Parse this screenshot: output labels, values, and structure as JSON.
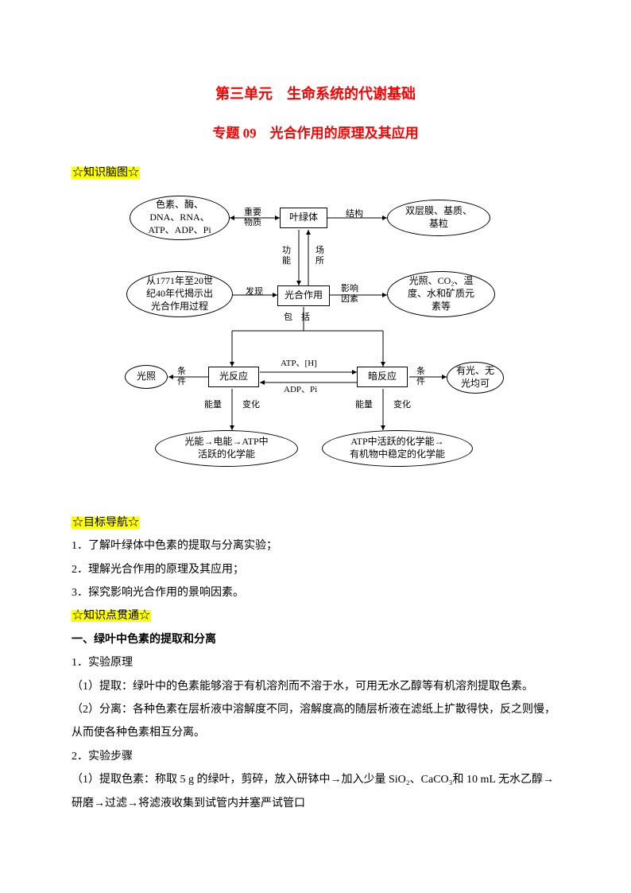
{
  "title_unit": "第三单元　生命系统的代谢基础",
  "title_topic": "专题 09　光合作用的原理及其应用",
  "section_brainmap": "☆知识脑图☆",
  "section_objectives": "☆目标导航☆",
  "section_knowledge": "☆知识点贯通☆",
  "objectives": {
    "o1": "1．了解叶绿体中色素的提取与分离实验；",
    "o2": "2．理解光合作用的原理及其应用；",
    "o3": "3．探究影响光合作用的景响因素。"
  },
  "knowledge": {
    "h1": "一、绿叶中色素的提取和分离",
    "k1": "1．实验原理",
    "k1a": "（1）提取：绿叶中的色素能够溶于有机溶剂而不溶于水，可用无水乙醇等有机溶剂提取色素。",
    "k1b": "（2）分离：各种色素在层析液中溶解度不同，溶解度高的随层析液在滤纸上扩散得快，反之则慢，从而使各种色素相互分离。",
    "k2": "2．实验步骤",
    "k2a": "（1）提取色素：称取 5 g 的绿叶，剪碎，放入研钵中→加入少量 SiO₂、CaCO₃和 10 mL 无水乙醇→研磨→过滤→将滤液收集到试管内并塞严试管口"
  },
  "diagram": {
    "type": "flowchart",
    "nodes": {
      "pigments": "色素、酶、\nDNA、RNA、\nATP、ADP、Pi",
      "chloroplast": "叶绿体",
      "membrane": "双层膜、基质、\n基粒",
      "discovery": "从1771年至20世\n纪40年代揭示出\n光合作用过程",
      "photosynthesis": "光合作用",
      "factors": "光照、CO₂、温\n度、水和矿质元\n素等",
      "light": "光照",
      "light_reaction": "光反应",
      "dark_reaction": "暗反应",
      "dark_cond": "有光、无\n光均可",
      "light_energy": "光能→电能→ATP中\n活跃的化学能",
      "dark_energy": "ATP中活跃的化学能→\n有机物中稳定的化学能"
    },
    "edge_labels": {
      "important": "重要\n物质",
      "structure": "结构",
      "function_place": "功\n能",
      "place": "场\n所",
      "found": "发现",
      "influence": "影响\n因素",
      "include": "包　括",
      "cond_l": "条\n件",
      "cond_r": "条\n件",
      "atp_h": "ATP、[H]",
      "adp_pi": "ADP、Pi",
      "energy_l": "能量",
      "change_l": "变化",
      "energy_r": "能量",
      "change_r": "变化"
    },
    "colors": {
      "stroke": "#000000",
      "bg": "#ffffff",
      "text": "#000000"
    },
    "line_width": 1
  }
}
